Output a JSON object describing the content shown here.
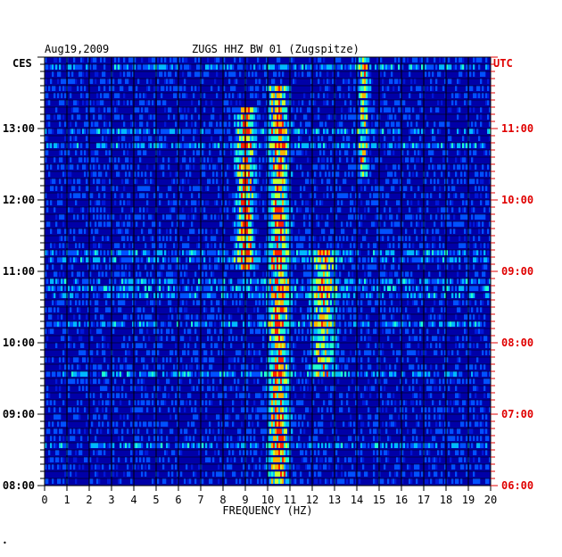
{
  "header": {
    "date": "Aug19,2009",
    "station": "ZUGS HHZ BW 01 (Zugspitze)",
    "tz_left": "CES",
    "tz_right": "UTC",
    "footer_mark": "•"
  },
  "colors": {
    "left_axis": "#000000",
    "right_axis": "#e00000",
    "background": "#0000a8",
    "grid": "#000000",
    "palette": [
      "#00008c",
      "#0018d8",
      "#0050ff",
      "#00b8ff",
      "#20ffd0",
      "#c8ff30",
      "#ffb000",
      "#ff2000"
    ]
  },
  "chart_data": {
    "type": "heatmap",
    "xlabel": "FREQUENCY (HZ)",
    "xlim": [
      0,
      20
    ],
    "x_ticks": [
      "0",
      "1",
      "2",
      "3",
      "4",
      "5",
      "6",
      "7",
      "8",
      "9",
      "10",
      "11",
      "12",
      "13",
      "14",
      "15",
      "16",
      "17",
      "18",
      "19",
      "20"
    ],
    "y_ticks_left": [
      "08:00",
      "09:00",
      "10:00",
      "11:00",
      "12:00",
      "13:00"
    ],
    "y_ticks_right": [
      "06:00",
      "07:00",
      "08:00",
      "09:00",
      "10:00",
      "11:00"
    ],
    "ylim_local_hours": [
      8.0,
      14.0
    ],
    "rows_per_hour": 10,
    "strong_bands_hz": [
      {
        "center": 9.0,
        "width": 0.35,
        "intensity": 0.85,
        "from_h": 11.1,
        "to_h": 13.3
      },
      {
        "center": 10.5,
        "width": 0.4,
        "intensity": 0.75,
        "from_h": 8.0,
        "to_h": 13.6
      },
      {
        "center": 12.5,
        "width": 0.5,
        "intensity": 0.55,
        "from_h": 9.6,
        "to_h": 11.3
      },
      {
        "center": 14.3,
        "width": 0.2,
        "intensity": 0.6,
        "from_h": 12.4,
        "to_h": 14.0
      }
    ]
  }
}
